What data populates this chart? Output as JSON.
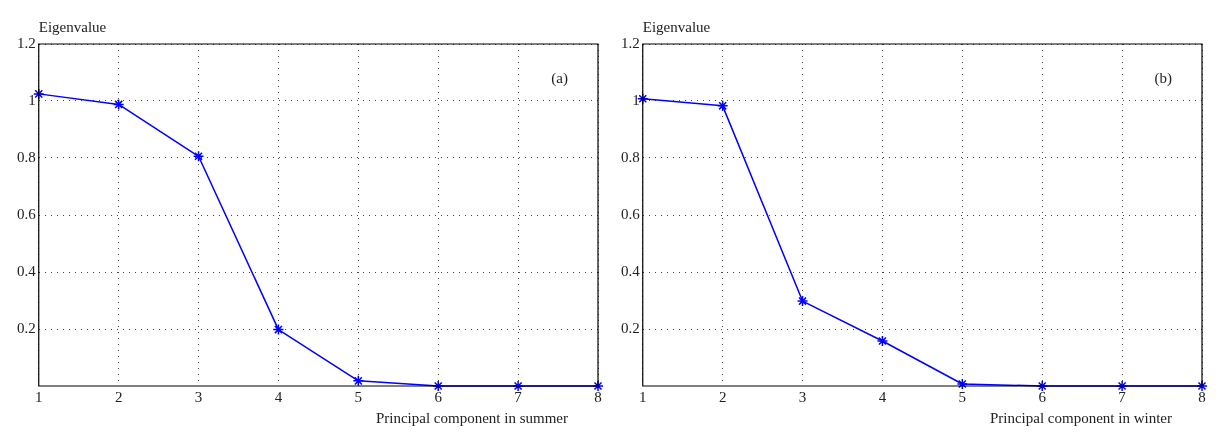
{
  "chart_data": [
    {
      "type": "line",
      "ylabel": "Eigenvalue",
      "xlabel": "Principal component in summer",
      "annotations": [
        "(a)"
      ],
      "x": [
        1,
        2,
        3,
        4,
        5,
        6,
        7,
        8
      ],
      "series": [
        {
          "color": "#0000ff",
          "values": [
            1.025,
            0.988,
            0.806,
            0.198,
            0.018,
            0,
            0,
            0
          ]
        }
      ],
      "xlim": [
        1,
        8
      ],
      "xticks": [
        1,
        2,
        3,
        4,
        5,
        6,
        7,
        8
      ],
      "ylim": [
        0,
        1.2
      ],
      "yticks": [
        0.2,
        0.4,
        0.6,
        0.8,
        1,
        1.2
      ],
      "grid": true,
      "legend": false,
      "marker": "cross",
      "line_style": "solid"
    },
    {
      "type": "line",
      "ylabel": "Eigenvalue",
      "xlabel": "Principal component in winter",
      "annotations": [
        "(b)"
      ],
      "x": [
        1,
        2,
        3,
        4,
        5,
        6,
        7,
        8
      ],
      "series": [
        {
          "color": "#0000ff",
          "values": [
            1.008,
            0.983,
            0.298,
            0.158,
            0.007,
            0,
            0,
            0
          ]
        }
      ],
      "xlim": [
        1,
        8
      ],
      "xticks": [
        1,
        2,
        3,
        4,
        5,
        6,
        7,
        8
      ],
      "ylim": [
        0,
        1.2
      ],
      "yticks": [
        0.2,
        0.4,
        0.6,
        0.8,
        1,
        1.2
      ],
      "grid": true,
      "legend": false,
      "marker": "cross",
      "line_style": "solid"
    }
  ]
}
